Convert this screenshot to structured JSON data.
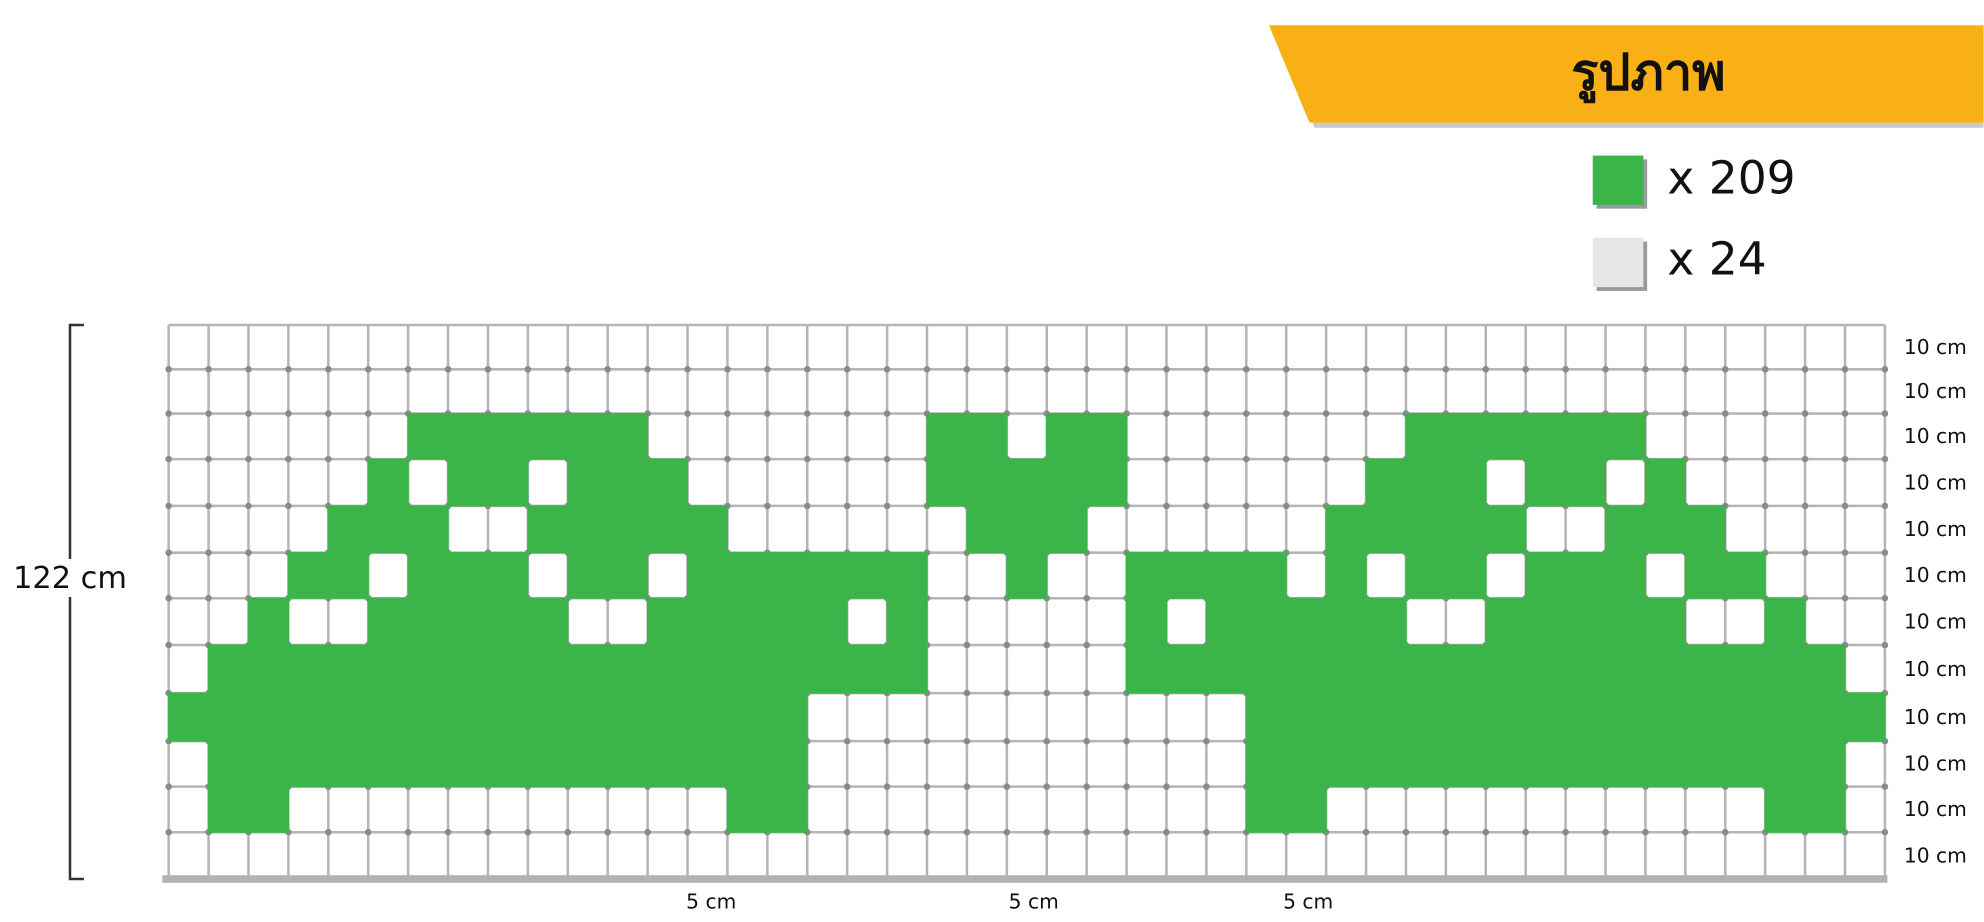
{
  "header": {
    "title": "รูปภาพ"
  },
  "legend": [
    {
      "label": "x 209"
    },
    {
      "label": "x 24"
    }
  ],
  "height_label": "122 cm",
  "row_labels": [
    "10 cm",
    "10 cm",
    "10 cm",
    "10 cm",
    "10 cm",
    "10 cm",
    "10 cm",
    "10 cm",
    "10 cm",
    "10 cm",
    "10 cm",
    "10 cm"
  ],
  "column_labels": [
    "5 cm",
    "5 cm",
    "5 cm"
  ]
}
